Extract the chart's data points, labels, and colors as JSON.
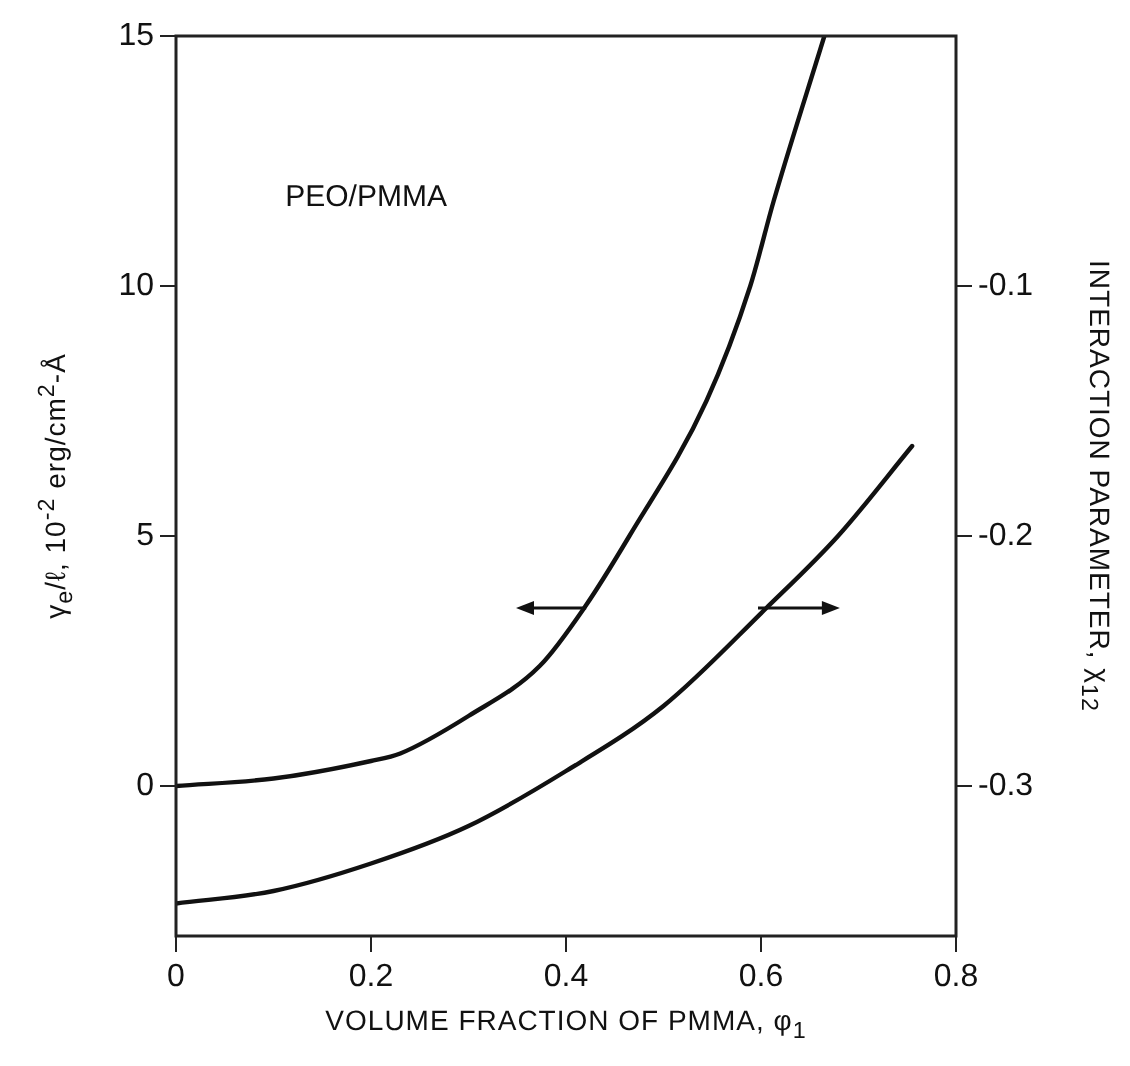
{
  "chart_data": {
    "type": "line",
    "xlabel": "VOLUME FRACTION OF PMMA, φ$_{1}$",
    "ylabel": "γ$_{e}$/ℓ, 10$^{-2}$ erg/cm$^{2}$-Å",
    "y2label": "INTERACTION PARAMETER, χ$_{12}$",
    "annotations": [
      "PEO/PMMA"
    ],
    "xlim": [
      0,
      0.8
    ],
    "xticks": [
      0,
      0.2,
      0.4,
      0.6,
      0.8
    ],
    "ylim": [
      -3,
      15
    ],
    "yticks": [
      0,
      5,
      10,
      15
    ],
    "y2lim": [
      -0.36,
      0
    ],
    "y2ticks": [
      -0.1,
      -0.2,
      -0.3
    ],
    "grid": false,
    "legend": false,
    "marker": "none",
    "line_style": "solid",
    "series": [
      {
        "color": "#111111",
        "x": [
          0,
          0.1,
          0.2,
          0.23,
          0.3,
          0.373,
          0.42,
          0.465,
          0.544,
          0.589,
          0.613,
          0.665
        ],
        "values": [
          0,
          0.15,
          0.5,
          0.65,
          1.4,
          2.4,
          3.6,
          5,
          7.7,
          10,
          11.7,
          15
        ]
      },
      {
        "color": "#111111",
        "axis": "y2",
        "x": [
          0,
          0.1,
          0.2,
          0.3,
          0.4,
          0.5,
          0.605,
          0.679,
          0.755
        ],
        "values": [
          -0.347,
          -0.342,
          -0.331,
          -0.316,
          -0.294,
          -0.268,
          -0.229,
          -0.2,
          -0.164
        ]
      }
    ]
  }
}
